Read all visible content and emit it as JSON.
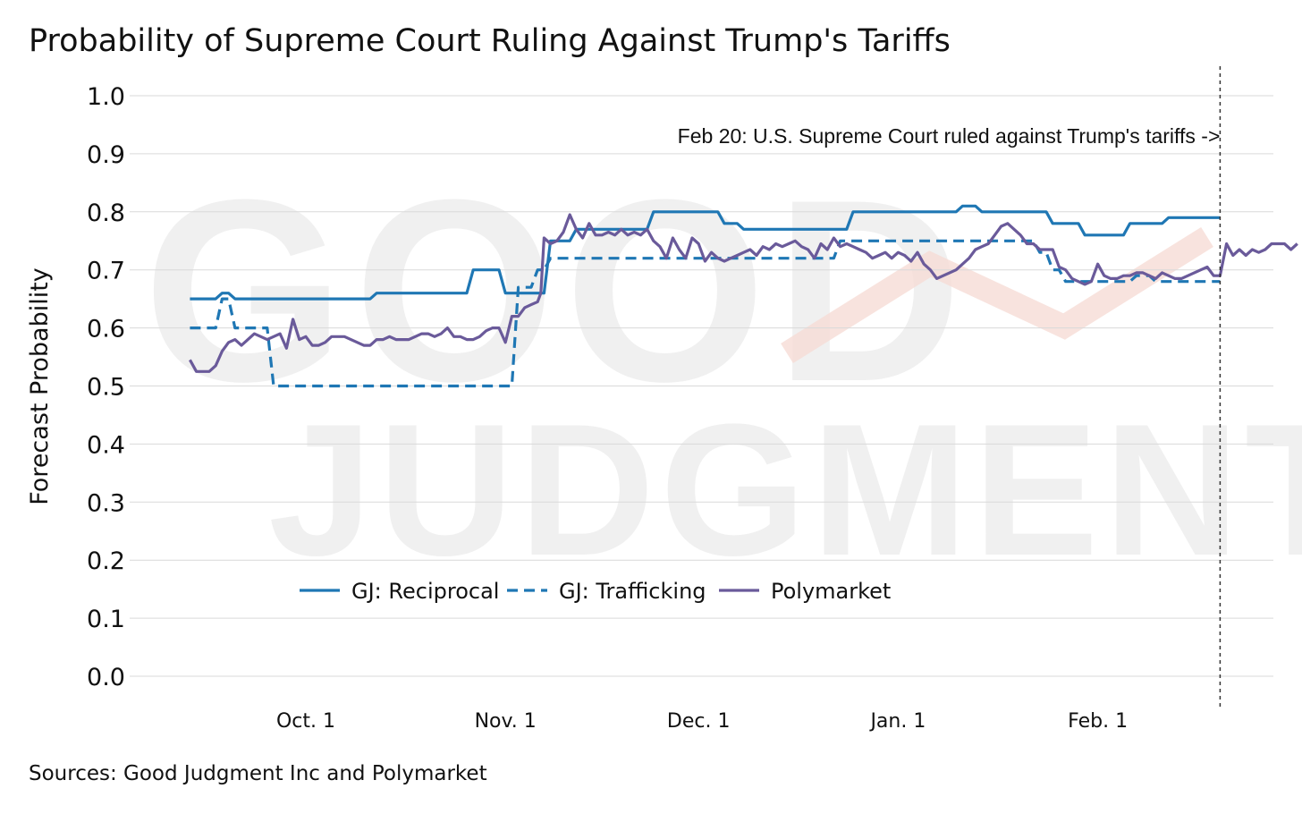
{
  "chart_data": {
    "type": "line",
    "title": "Probability of Supreme Court Ruling Against Trump's Tariffs",
    "ylabel": "Forecast Probability",
    "xlabel": "",
    "ylim": [
      0,
      1
    ],
    "xlim": [
      "2025-09-01",
      "2026-02-26"
    ],
    "yticks": [
      "1.0",
      "0.9",
      "0.8",
      "0.7",
      "0.6",
      "0.5",
      "0.4",
      "0.3",
      "0.2",
      "0.1",
      "0.0"
    ],
    "xticks": [
      {
        "label": "Oct. 1",
        "day": 30
      },
      {
        "label": "Nov. 1",
        "day": 61
      },
      {
        "label": "Dec. 1",
        "day": 91
      },
      {
        "label": "Jan. 1",
        "day": 122
      },
      {
        "label": "Feb. 1",
        "day": 153
      }
    ],
    "annotation": {
      "text": "Feb 20: U.S. Supreme Court ruled against Trump's tariffs ->",
      "day": 172
    },
    "source": "Sources: Good Judgment Inc and Polymarket",
    "watermark": [
      "GOOD",
      "JUDGMENT"
    ],
    "legend_position": "bottom-left",
    "series": [
      {
        "name": "GJ: Reciprocal",
        "style": "solid",
        "color": "#1f77b4",
        "points": [
          [
            12,
            0.65
          ],
          [
            16,
            0.65
          ],
          [
            17,
            0.66
          ],
          [
            18,
            0.66
          ],
          [
            19,
            0.65
          ],
          [
            40,
            0.65
          ],
          [
            41,
            0.66
          ],
          [
            55,
            0.66
          ],
          [
            56,
            0.7
          ],
          [
            60,
            0.7
          ],
          [
            61,
            0.66
          ],
          [
            67,
            0.66
          ],
          [
            68,
            0.75
          ],
          [
            71,
            0.75
          ],
          [
            72,
            0.77
          ],
          [
            83,
            0.77
          ],
          [
            84,
            0.8
          ],
          [
            94,
            0.8
          ],
          [
            95,
            0.78
          ],
          [
            97,
            0.78
          ],
          [
            98,
            0.77
          ],
          [
            114,
            0.77
          ],
          [
            115,
            0.8
          ],
          [
            131,
            0.8
          ],
          [
            132,
            0.81
          ],
          [
            134,
            0.81
          ],
          [
            135,
            0.8
          ],
          [
            145,
            0.8
          ],
          [
            146,
            0.78
          ],
          [
            150,
            0.78
          ],
          [
            151,
            0.76
          ],
          [
            157,
            0.76
          ],
          [
            158,
            0.78
          ],
          [
            163,
            0.78
          ],
          [
            164,
            0.79
          ],
          [
            172,
            0.79
          ]
        ]
      },
      {
        "name": "GJ: Trafficking",
        "style": "dashed",
        "color": "#1f77b4",
        "points": [
          [
            12,
            0.6
          ],
          [
            16,
            0.6
          ],
          [
            17,
            0.65
          ],
          [
            18,
            0.65
          ],
          [
            19,
            0.6
          ],
          [
            24,
            0.6
          ],
          [
            25,
            0.5
          ],
          [
            62,
            0.5
          ],
          [
            63,
            0.67
          ],
          [
            65,
            0.67
          ],
          [
            66,
            0.7
          ],
          [
            67,
            0.7
          ],
          [
            68,
            0.72
          ],
          [
            112,
            0.72
          ],
          [
            113,
            0.75
          ],
          [
            143,
            0.75
          ],
          [
            144,
            0.73
          ],
          [
            145,
            0.73
          ],
          [
            146,
            0.7
          ],
          [
            147,
            0.7
          ],
          [
            148,
            0.68
          ],
          [
            158,
            0.68
          ],
          [
            159,
            0.69
          ],
          [
            161,
            0.69
          ],
          [
            162,
            0.68
          ],
          [
            172,
            0.68
          ]
        ]
      },
      {
        "name": "Polymarket",
        "style": "solid",
        "color": "#6a5a9a",
        "points": [
          [
            12,
            0.545
          ],
          [
            13,
            0.525
          ],
          [
            14,
            0.525
          ],
          [
            15,
            0.525
          ],
          [
            16,
            0.535
          ],
          [
            17,
            0.56
          ],
          [
            18,
            0.575
          ],
          [
            19,
            0.58
          ],
          [
            20,
            0.57
          ],
          [
            21,
            0.58
          ],
          [
            22,
            0.59
          ],
          [
            23,
            0.585
          ],
          [
            24,
            0.58
          ],
          [
            25,
            0.585
          ],
          [
            26,
            0.59
          ],
          [
            27,
            0.565
          ],
          [
            28,
            0.615
          ],
          [
            29,
            0.58
          ],
          [
            30,
            0.585
          ],
          [
            31,
            0.57
          ],
          [
            32,
            0.57
          ],
          [
            33,
            0.575
          ],
          [
            34,
            0.585
          ],
          [
            35,
            0.585
          ],
          [
            36,
            0.585
          ],
          [
            37,
            0.58
          ],
          [
            38,
            0.575
          ],
          [
            39,
            0.57
          ],
          [
            40,
            0.57
          ],
          [
            41,
            0.58
          ],
          [
            42,
            0.58
          ],
          [
            43,
            0.585
          ],
          [
            44,
            0.58
          ],
          [
            45,
            0.58
          ],
          [
            46,
            0.58
          ],
          [
            47,
            0.585
          ],
          [
            48,
            0.59
          ],
          [
            49,
            0.59
          ],
          [
            50,
            0.585
          ],
          [
            51,
            0.59
          ],
          [
            52,
            0.6
          ],
          [
            53,
            0.585
          ],
          [
            54,
            0.585
          ],
          [
            55,
            0.58
          ],
          [
            56,
            0.58
          ],
          [
            57,
            0.585
          ],
          [
            58,
            0.595
          ],
          [
            59,
            0.6
          ],
          [
            60,
            0.6
          ],
          [
            61,
            0.575
          ],
          [
            62,
            0.62
          ],
          [
            63,
            0.62
          ],
          [
            64,
            0.635
          ],
          [
            65,
            0.64
          ],
          [
            66,
            0.645
          ],
          [
            66.5,
            0.66
          ],
          [
            67,
            0.755
          ],
          [
            68,
            0.745
          ],
          [
            69,
            0.75
          ],
          [
            70,
            0.765
          ],
          [
            71,
            0.795
          ],
          [
            72,
            0.77
          ],
          [
            73,
            0.755
          ],
          [
            74,
            0.78
          ],
          [
            75,
            0.76
          ],
          [
            76,
            0.76
          ],
          [
            77,
            0.765
          ],
          [
            78,
            0.76
          ],
          [
            79,
            0.77
          ],
          [
            80,
            0.76
          ],
          [
            81,
            0.765
          ],
          [
            82,
            0.76
          ],
          [
            83,
            0.77
          ],
          [
            84,
            0.75
          ],
          [
            85,
            0.74
          ],
          [
            86,
            0.72
          ],
          [
            87,
            0.755
          ],
          [
            88,
            0.735
          ],
          [
            89,
            0.72
          ],
          [
            90,
            0.755
          ],
          [
            91,
            0.745
          ],
          [
            92,
            0.715
          ],
          [
            93,
            0.73
          ],
          [
            94,
            0.72
          ],
          [
            95,
            0.715
          ],
          [
            96,
            0.72
          ],
          [
            97,
            0.725
          ],
          [
            98,
            0.73
          ],
          [
            99,
            0.735
          ],
          [
            100,
            0.725
          ],
          [
            101,
            0.74
          ],
          [
            102,
            0.735
          ],
          [
            103,
            0.745
          ],
          [
            104,
            0.74
          ],
          [
            105,
            0.745
          ],
          [
            106,
            0.75
          ],
          [
            107,
            0.74
          ],
          [
            108,
            0.735
          ],
          [
            109,
            0.72
          ],
          [
            110,
            0.745
          ],
          [
            111,
            0.735
          ],
          [
            112,
            0.755
          ],
          [
            113,
            0.74
          ],
          [
            114,
            0.745
          ],
          [
            115,
            0.74
          ],
          [
            116,
            0.735
          ],
          [
            117,
            0.73
          ],
          [
            118,
            0.72
          ],
          [
            119,
            0.725
          ],
          [
            120,
            0.73
          ],
          [
            121,
            0.72
          ],
          [
            122,
            0.73
          ],
          [
            123,
            0.725
          ],
          [
            124,
            0.715
          ],
          [
            125,
            0.73
          ],
          [
            126,
            0.71
          ],
          [
            127,
            0.7
          ],
          [
            128,
            0.685
          ],
          [
            129,
            0.69
          ],
          [
            130,
            0.695
          ],
          [
            131,
            0.7
          ],
          [
            132,
            0.71
          ],
          [
            133,
            0.72
          ],
          [
            134,
            0.735
          ],
          [
            135,
            0.74
          ],
          [
            136,
            0.745
          ],
          [
            137,
            0.76
          ],
          [
            138,
            0.775
          ],
          [
            139,
            0.78
          ],
          [
            140,
            0.77
          ],
          [
            141,
            0.76
          ],
          [
            142,
            0.745
          ],
          [
            143,
            0.745
          ],
          [
            144,
            0.735
          ],
          [
            145,
            0.735
          ],
          [
            146,
            0.735
          ],
          [
            147,
            0.705
          ],
          [
            148,
            0.7
          ],
          [
            149,
            0.685
          ],
          [
            150,
            0.68
          ],
          [
            151,
            0.675
          ],
          [
            152,
            0.68
          ],
          [
            153,
            0.71
          ],
          [
            154,
            0.69
          ],
          [
            155,
            0.685
          ],
          [
            156,
            0.685
          ],
          [
            157,
            0.69
          ],
          [
            158,
            0.69
          ],
          [
            159,
            0.695
          ],
          [
            160,
            0.695
          ],
          [
            161,
            0.69
          ],
          [
            162,
            0.685
          ],
          [
            163,
            0.695
          ],
          [
            164,
            0.69
          ],
          [
            165,
            0.685
          ],
          [
            166,
            0.685
          ],
          [
            167,
            0.69
          ],
          [
            168,
            0.695
          ],
          [
            169,
            0.7
          ],
          [
            170,
            0.705
          ],
          [
            171,
            0.69
          ],
          [
            172,
            0.69
          ],
          [
            173,
            0.745
          ],
          [
            174,
            0.725
          ],
          [
            175,
            0.735
          ],
          [
            176,
            0.725
          ],
          [
            177,
            0.735
          ],
          [
            178,
            0.73
          ],
          [
            179,
            0.735
          ],
          [
            180,
            0.745
          ],
          [
            181,
            0.745
          ],
          [
            182,
            0.745
          ],
          [
            183,
            0.735
          ],
          [
            184,
            0.745
          ]
        ]
      }
    ]
  }
}
